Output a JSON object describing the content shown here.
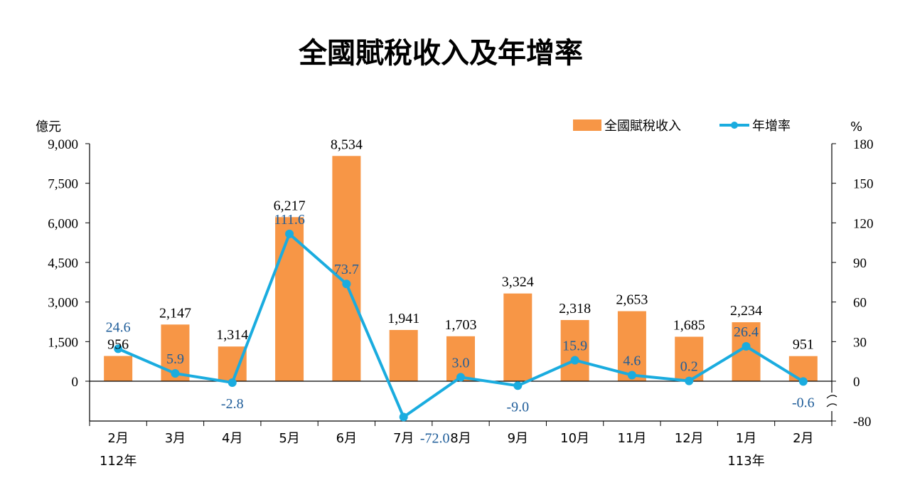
{
  "chart_data": {
    "type": "bar",
    "title": "全國賦稅收入及年增率",
    "categories": [
      "2月",
      "3月",
      "4月",
      "5月",
      "6月",
      "7月",
      "8月",
      "9月",
      "10月",
      "11月",
      "12月",
      "1月",
      "2月"
    ],
    "year_labels": [
      {
        "index": 0,
        "label": "112年"
      },
      {
        "index": 11,
        "label": "113年"
      }
    ],
    "left_axis": {
      "unit": "億元",
      "ylim": [
        0,
        9000
      ],
      "ticks": [
        "9,000",
        "7,500",
        "6,000",
        "4,500",
        "3,000",
        "1,500",
        "0"
      ],
      "tick_values": [
        9000,
        7500,
        6000,
        4500,
        3000,
        1500,
        0
      ]
    },
    "right_axis": {
      "unit": "%",
      "ticks": [
        "180",
        "150",
        "120",
        "90",
        "60",
        "30",
        "0",
        "-80"
      ],
      "tick_values": [
        180,
        150,
        120,
        90,
        60,
        30,
        0,
        -80
      ],
      "axis_break": true
    },
    "series": [
      {
        "name": "全國賦稅收入",
        "type": "bar",
        "axis": "left",
        "color": "#f79646",
        "values": [
          956,
          2147,
          1314,
          6217,
          8534,
          1941,
          1703,
          3324,
          2318,
          2653,
          1685,
          2234,
          951
        ],
        "labels": [
          "956",
          "2,147",
          "1,314",
          "6,217",
          "8,534",
          "1,941",
          "1,703",
          "3,324",
          "2,318",
          "2,653",
          "1,685",
          "2,234",
          "951"
        ]
      },
      {
        "name": "年增率",
        "type": "line",
        "axis": "right",
        "color": "#1aacdf",
        "values": [
          24.6,
          5.9,
          -2.8,
          111.6,
          73.7,
          -72.0,
          3.0,
          -9.0,
          15.9,
          4.6,
          0.2,
          26.4,
          -0.6
        ],
        "labels": [
          "24.6",
          "5.9",
          "-2.8",
          "111.6",
          "73.7",
          "-72.0",
          "3.0",
          "-9.0",
          "15.9",
          "4.6",
          "0.2",
          "26.4",
          "-0.6"
        ]
      }
    ],
    "legend_position": "top-right",
    "grid": false
  }
}
